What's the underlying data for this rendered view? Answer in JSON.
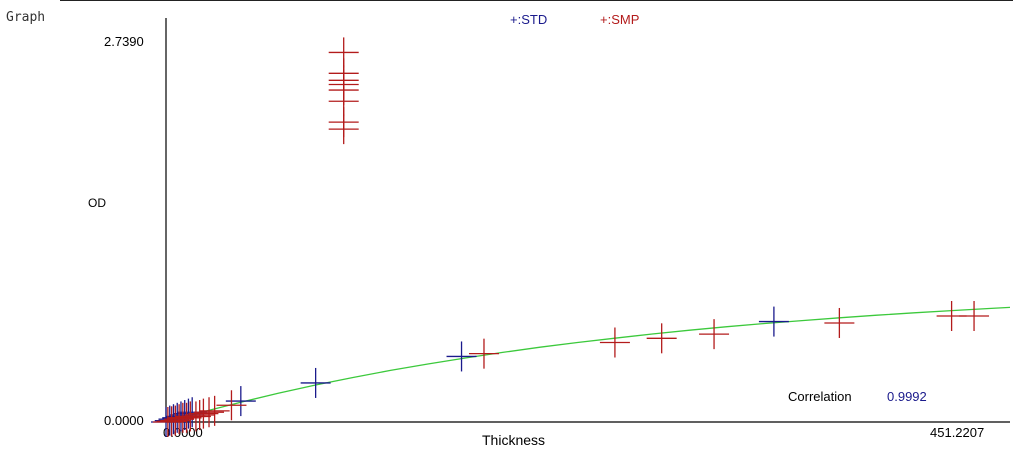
{
  "window": {
    "title": "Graph"
  },
  "chart_data": {
    "type": "scatter",
    "title": "",
    "xlabel": "Thickness",
    "ylabel": "OD",
    "xlim": [
      0.0,
      451.2207
    ],
    "ylim": [
      0.0,
      2.739
    ],
    "x_tick_labels": {
      "min": "0.0000",
      "max": "451.2207"
    },
    "y_tick_labels": {
      "min": "0.0000",
      "max": "2.7390"
    },
    "legend": {
      "placement": "top-center",
      "std_label": "+:STD",
      "smp_label": "+:SMP"
    },
    "series": [
      {
        "name": "STD",
        "color": "#1a1a8c",
        "x": [
          0,
          2,
          4,
          6,
          8,
          10,
          12,
          14,
          40,
          80,
          158,
          325
        ],
        "y": [
          0.0,
          0.01,
          0.02,
          0.03,
          0.04,
          0.05,
          0.06,
          0.07,
          0.15,
          0.28,
          0.47,
          0.72
        ]
      },
      {
        "name": "SMP",
        "color": "#b31b1b",
        "x": [
          1,
          3,
          5,
          7,
          9,
          11,
          13,
          16,
          18,
          20,
          23,
          26,
          35,
          95,
          95,
          95,
          95,
          95,
          95,
          95,
          95,
          170,
          240,
          265,
          293,
          360,
          420,
          432
        ],
        "y": [
          0.0,
          0.005,
          0.01,
          0.02,
          0.03,
          0.03,
          0.04,
          0.04,
          0.05,
          0.06,
          0.07,
          0.08,
          0.12,
          2.65,
          2.5,
          2.45,
          2.42,
          2.38,
          2.3,
          2.15,
          2.1,
          0.49,
          0.57,
          0.6,
          0.63,
          0.71,
          0.76,
          0.76
        ]
      },
      {
        "name": "",
        "kind": "fit-curve",
        "color": "#3cc93c",
        "x": [
          0,
          20,
          40,
          60,
          80,
          100,
          120,
          140,
          160,
          180,
          200,
          220,
          240,
          260,
          280,
          300,
          320,
          340,
          360,
          380,
          400,
          420,
          440,
          451.2207
        ],
        "y": [
          0.0,
          0.073,
          0.142,
          0.206,
          0.265,
          0.319,
          0.37,
          0.416,
          0.459,
          0.499,
          0.536,
          0.57,
          0.601,
          0.631,
          0.658,
          0.683,
          0.706,
          0.727,
          0.747,
          0.766,
          0.783,
          0.799,
          0.814,
          0.822
        ]
      }
    ],
    "annotations": {
      "correlation_label": "Correlation",
      "correlation_value": "0.9992"
    }
  }
}
